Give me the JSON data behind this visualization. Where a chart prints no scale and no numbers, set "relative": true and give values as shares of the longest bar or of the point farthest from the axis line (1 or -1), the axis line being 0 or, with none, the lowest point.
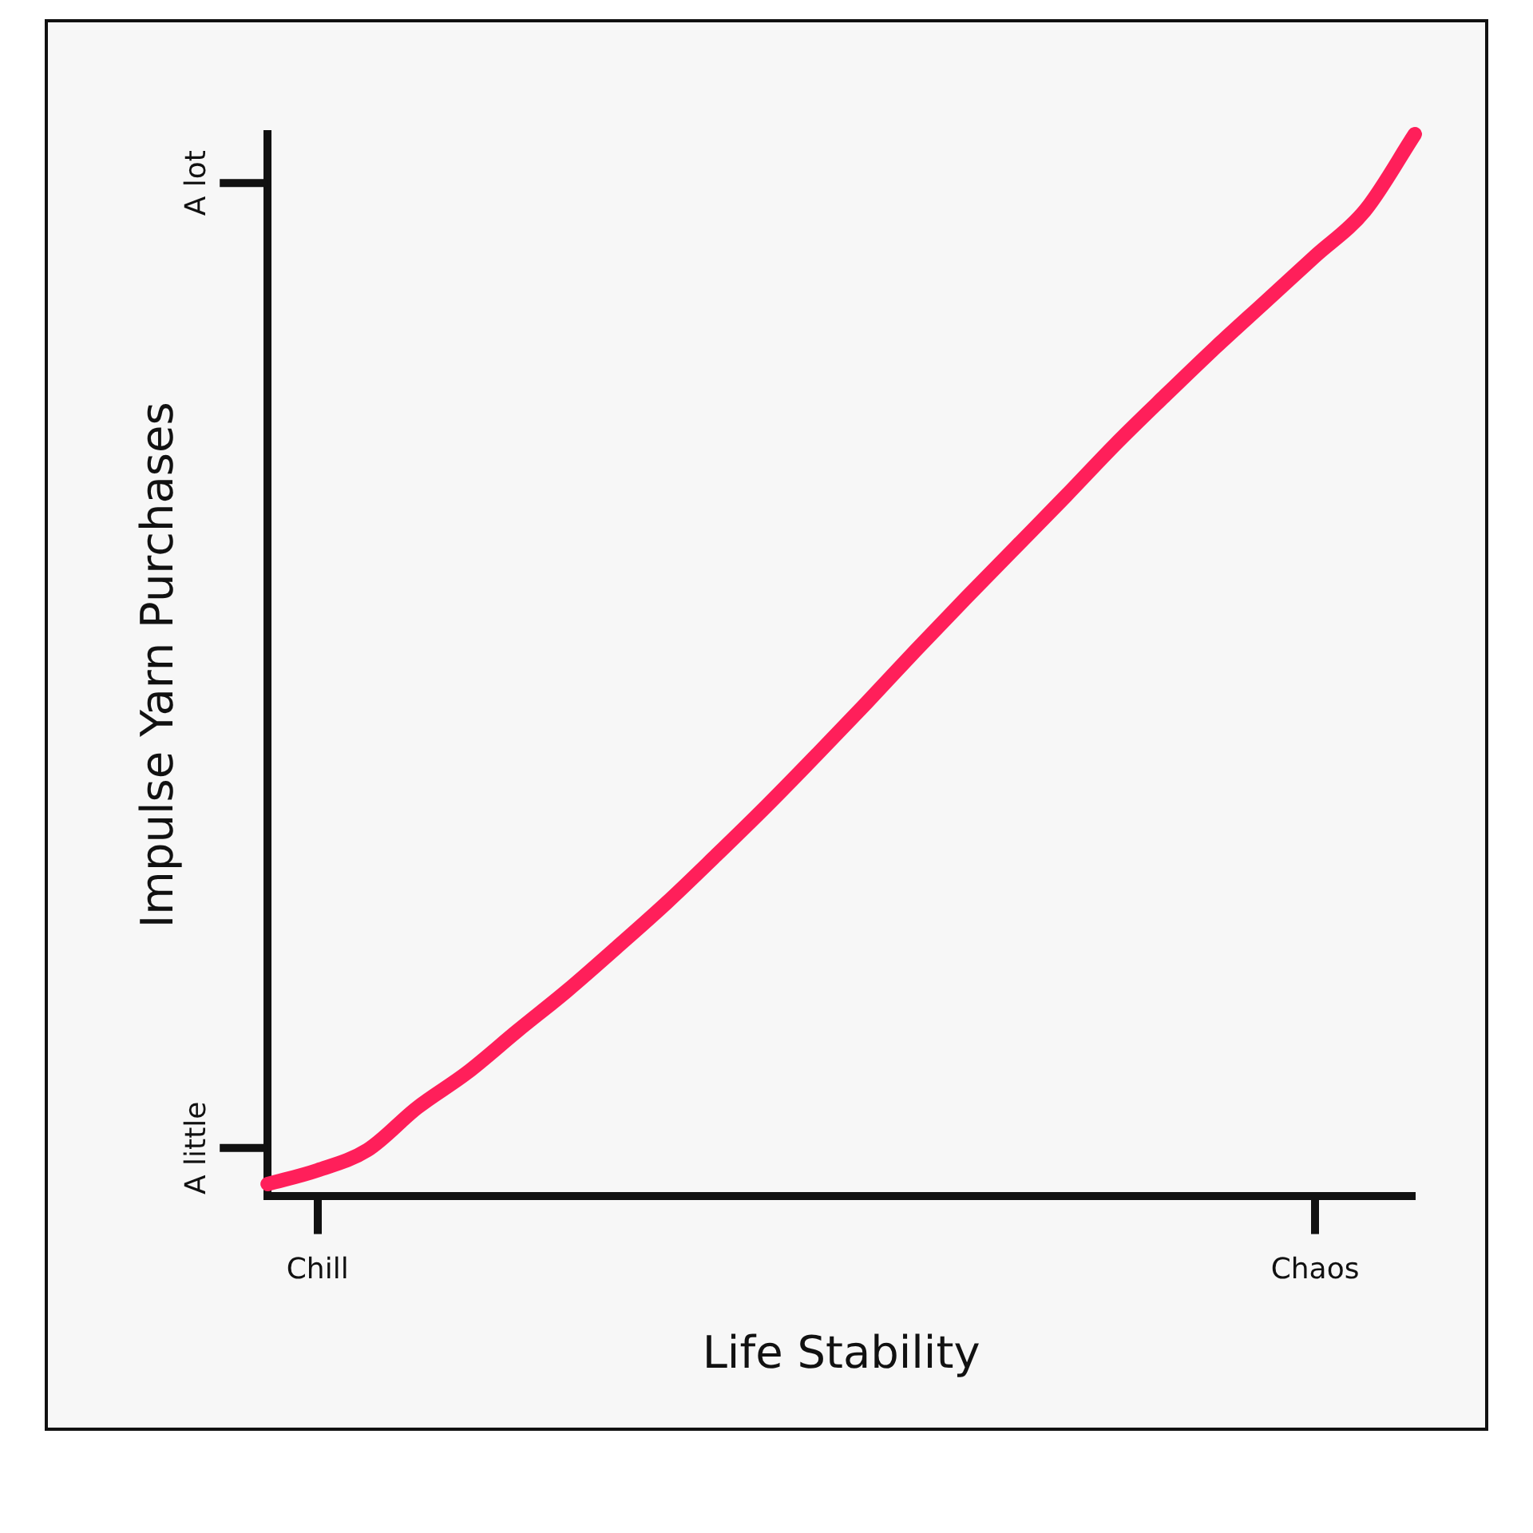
{
  "chart_data": {
    "type": "line",
    "xlabel": "Life Stability",
    "ylabel": "Impulse Yarn Purchases",
    "relative": true,
    "categories": [
      null,
      "Chill",
      null,
      null,
      null,
      null,
      null,
      null,
      null,
      null,
      null,
      null,
      null,
      null,
      null,
      null,
      null,
      null,
      null,
      null,
      null,
      "Chaos",
      null,
      null
    ],
    "annotations": [
      "A little",
      "A lot"
    ],
    "grid": false,
    "legend": false,
    "marker": "none",
    "line_style": "solid",
    "series": [
      {
        "color": "#ff1f5a",
        "values": [
          0.011,
          0.024,
          0.043,
          0.083,
          0.116,
          0.155,
          0.193,
          0.234,
          0.276,
          0.321,
          0.367,
          0.415,
          0.464,
          0.514,
          0.563,
          0.611,
          0.659,
          0.708,
          0.754,
          0.799,
          0.842,
          0.885,
          0.928,
          1.0
        ]
      }
    ]
  }
}
